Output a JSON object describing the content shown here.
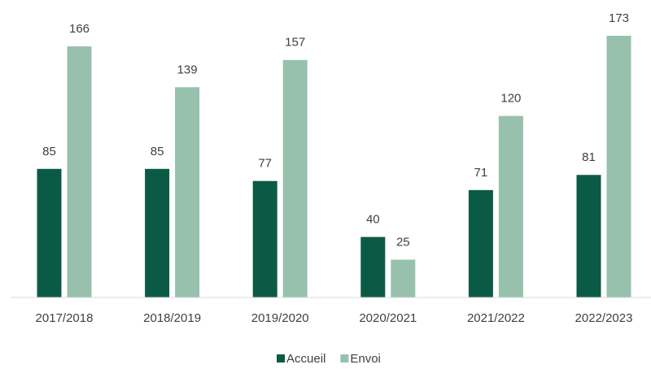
{
  "chart_data": {
    "type": "bar",
    "categories": [
      "2017/2018",
      "2018/2019",
      "2019/2020",
      "2020/2021",
      "2021/2022",
      "2022/2023"
    ],
    "series": [
      {
        "name": "Accueil",
        "color": "#0b5a45",
        "values": [
          85,
          85,
          77,
          40,
          71,
          81
        ]
      },
      {
        "name": "Envoi",
        "color": "#97c1ad",
        "values": [
          166,
          139,
          157,
          25,
          120,
          173
        ]
      }
    ],
    "legend": "bottom"
  }
}
